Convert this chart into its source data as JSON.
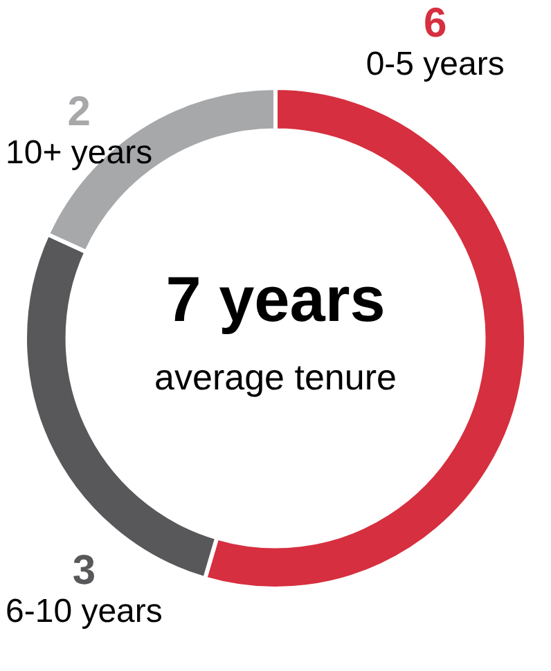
{
  "chart_data": {
    "type": "donut",
    "categories": [
      "0-5 years",
      "6-10 years",
      "10+ years"
    ],
    "values": [
      6,
      3,
      2
    ],
    "colors": [
      "#d62f3f",
      "#58585a",
      "#a7a8aa"
    ],
    "data_labels": true,
    "legend": false,
    "annotations": [
      "7 years",
      "average tenure"
    ]
  }
}
